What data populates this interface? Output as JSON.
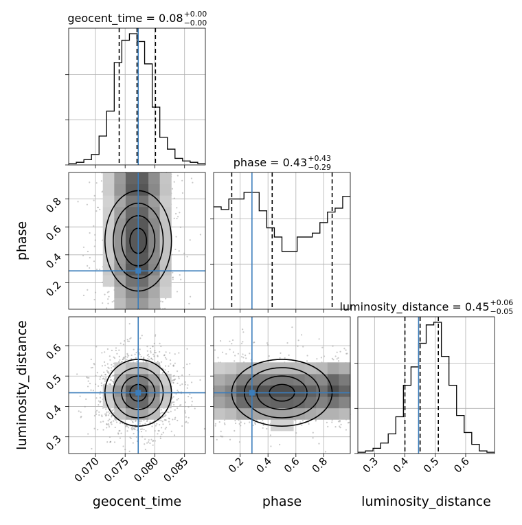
{
  "chart_data": {
    "type": "corner",
    "grid": true,
    "truth_color": "#3b7dbb",
    "parameters": [
      "geocent_time",
      "phase",
      "luminosity_distance"
    ],
    "truths": {
      "geocent_time": 0.0772,
      "phase": 0.285,
      "luminosity_distance": 0.445
    },
    "titles": [
      {
        "param": "geocent_time",
        "base": "geocent_time = 0.08",
        "plus": "+0.00",
        "minus": "−0.00"
      },
      {
        "param": "phase",
        "base": "phase = 0.43",
        "plus": "+0.43",
        "minus": "−0.29"
      },
      {
        "param": "luminosity_distance",
        "base": "luminosity_distance = 0.45",
        "plus": "+0.06",
        "minus": "−0.05"
      }
    ],
    "axes": {
      "geocent_time": {
        "range": [
          0.0655,
          0.0885
        ],
        "ticks": [
          "0.070",
          "0.075",
          "0.080",
          "0.085"
        ],
        "tick_values": [
          0.07,
          0.075,
          0.08,
          0.085
        ]
      },
      "phase": {
        "range": [
          0.01,
          0.99
        ],
        "ticks": [
          "0.2",
          "0.4",
          "0.6",
          "0.8"
        ],
        "tick_values": [
          0.2,
          0.4,
          0.6,
          0.8
        ]
      },
      "luminosity_distance": {
        "range": [
          0.245,
          0.695
        ],
        "ticks": [
          "0.3",
          "0.4",
          "0.5",
          "0.6"
        ],
        "tick_values": [
          0.3,
          0.4,
          0.5,
          0.6
        ]
      }
    },
    "histograms": {
      "geocent_time": {
        "edges_range": [
          0.0655,
          0.0885
        ],
        "counts": [
          0.01,
          0.02,
          0.04,
          0.08,
          0.22,
          0.41,
          0.78,
          0.95,
          1.0,
          0.94,
          0.77,
          0.44,
          0.21,
          0.12,
          0.05,
          0.03,
          0.02,
          0.01
        ],
        "quantiles": [
          0.074,
          0.077,
          0.0801
        ]
      },
      "phase": {
        "edges_range": [
          0.01,
          0.99
        ],
        "counts": [
          0.78,
          0.76,
          0.84,
          0.84,
          0.89,
          0.89,
          0.75,
          0.62,
          0.55,
          0.44,
          0.44,
          0.55,
          0.55,
          0.58,
          0.66,
          0.74,
          0.77,
          0.86
        ],
        "quantiles": [
          0.14,
          0.43,
          0.86
        ]
      },
      "luminosity_distance": {
        "edges_range": [
          0.245,
          0.695
        ],
        "counts": [
          0.01,
          0.02,
          0.04,
          0.08,
          0.15,
          0.28,
          0.52,
          0.66,
          0.84,
          0.98,
          1.0,
          0.74,
          0.52,
          0.29,
          0.16,
          0.07,
          0.02,
          0.01
        ],
        "quantiles": [
          0.4,
          0.45,
          0.51
        ]
      }
    },
    "density_2d": [
      {
        "x": "geocent_time",
        "y": "phase",
        "center": [
          0.0772,
          0.5
        ],
        "sigma": [
          0.0028,
          0.4
        ],
        "modes": [
          [
            0.0772,
            0.29
          ],
          [
            0.0772,
            0.9
          ]
        ]
      },
      {
        "x": "geocent_time",
        "y": "luminosity_distance",
        "center": [
          0.0772,
          0.445
        ],
        "sigma": [
          0.0028,
          0.055
        ]
      },
      {
        "x": "phase",
        "y": "luminosity_distance",
        "center": [
          0.5,
          0.445
        ],
        "sigma": [
          0.4,
          0.055
        ],
        "modes": [
          [
            0.26,
            0.445
          ],
          [
            0.88,
            0.455
          ]
        ]
      }
    ]
  }
}
